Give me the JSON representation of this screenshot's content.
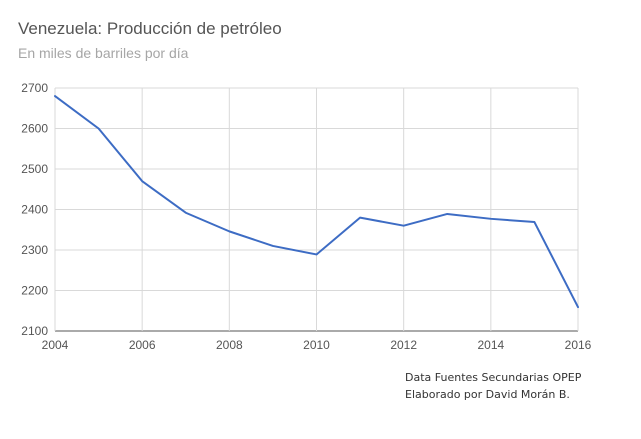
{
  "chart_data": {
    "type": "line",
    "title": "Venezuela: Producción de petróleo",
    "subtitle": "En miles de barriles por día",
    "xlabel": "",
    "ylabel": "",
    "x": [
      2004,
      2005,
      2006,
      2007,
      2008,
      2009,
      2010,
      2011,
      2012,
      2013,
      2014,
      2015,
      2016
    ],
    "series": [
      {
        "values": [
          2680,
          2600,
          2470,
          2392,
          2346,
          2310,
          2289,
          2380,
          2360,
          2389,
          2377,
          2369,
          2159
        ],
        "color": "#3d6cc4"
      }
    ],
    "xlim": [
      2004,
      2016
    ],
    "ylim": [
      2100,
      2700
    ],
    "x_ticks": [
      "2004",
      "2006",
      "2008",
      "2010",
      "2012",
      "2014",
      "2016"
    ],
    "y_ticks": [
      "2700",
      "2600",
      "2500",
      "2400",
      "2300",
      "2200",
      "2100"
    ],
    "grid": true,
    "legend": "none"
  },
  "notes": {
    "line1": "Data Fuentes Secundarias OPEP",
    "line2": "Elaborado por David Morán B."
  },
  "colors": {
    "grid": "#d9d9d9",
    "text": "#555555",
    "subtitle": "#a6a6a6"
  }
}
